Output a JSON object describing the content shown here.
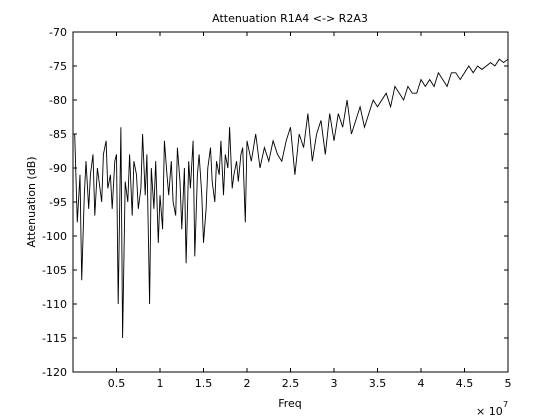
{
  "chart_data": {
    "type": "line",
    "title": "Attenuation R1A4 <-> R2A3",
    "xlabel": "Freq",
    "ylabel": "Attenuation (dB)",
    "x_multiplier": {
      "prefix": "× 10",
      "exponent": "7"
    },
    "xlim": [
      0,
      5
    ],
    "ylim": [
      -120,
      -70
    ],
    "x_ticks": [
      0.5,
      1,
      1.5,
      2,
      2.5,
      3,
      3.5,
      4,
      4.5,
      5
    ],
    "x_tick_labels": [
      "0.5",
      "1",
      "1.5",
      "2",
      "2.5",
      "3",
      "3.5",
      "4",
      "4.5",
      "5"
    ],
    "y_ticks": [
      -120,
      -115,
      -110,
      -105,
      -100,
      -95,
      -90,
      -85,
      -80,
      -75,
      -70
    ],
    "y_tick_labels": [
      "-120",
      "-115",
      "-110",
      "-105",
      "-100",
      "-95",
      "-90",
      "-85",
      "-80",
      "-75",
      "-70"
    ],
    "grid": false,
    "line_color": "#000000",
    "series": [
      {
        "x": [
          0.02,
          0.05,
          0.08,
          0.1,
          0.13,
          0.15,
          0.18,
          0.2,
          0.23,
          0.25,
          0.28,
          0.3,
          0.33,
          0.35,
          0.38,
          0.4,
          0.43,
          0.45,
          0.48,
          0.5,
          0.52,
          0.55,
          0.57,
          0.6,
          0.63,
          0.65,
          0.68,
          0.7,
          0.73,
          0.75,
          0.78,
          0.8,
          0.83,
          0.85,
          0.88,
          0.9,
          0.93,
          0.95,
          0.98,
          1.0,
          1.03,
          1.05,
          1.08,
          1.1,
          1.13,
          1.15,
          1.18,
          1.2,
          1.23,
          1.25,
          1.28,
          1.3,
          1.33,
          1.35,
          1.38,
          1.4,
          1.43,
          1.45,
          1.48,
          1.5,
          1.53,
          1.55,
          1.58,
          1.6,
          1.63,
          1.65,
          1.68,
          1.7,
          1.73,
          1.75,
          1.78,
          1.8,
          1.83,
          1.85,
          1.88,
          1.9,
          1.93,
          1.95,
          1.98,
          2.0,
          2.05,
          2.1,
          2.15,
          2.2,
          2.25,
          2.3,
          2.35,
          2.4,
          2.45,
          2.5,
          2.55,
          2.6,
          2.65,
          2.7,
          2.75,
          2.8,
          2.85,
          2.9,
          2.95,
          3.0,
          3.05,
          3.1,
          3.15,
          3.2,
          3.25,
          3.3,
          3.35,
          3.4,
          3.45,
          3.5,
          3.55,
          3.6,
          3.65,
          3.7,
          3.75,
          3.8,
          3.85,
          3.9,
          3.95,
          4.0,
          4.05,
          4.1,
          4.15,
          4.2,
          4.25,
          4.3,
          4.35,
          4.4,
          4.45,
          4.5,
          4.55,
          4.6,
          4.65,
          4.7,
          4.75,
          4.8,
          4.85,
          4.9,
          4.95,
          5.0
        ],
        "y": [
          -85,
          -98,
          -91,
          -106.5,
          -94,
          -89,
          -96,
          -91,
          -88,
          -97,
          -90,
          -92,
          -95,
          -88,
          -86,
          -93,
          -91,
          -96,
          -89,
          -88,
          -110,
          -84,
          -115,
          -92,
          -95,
          -88,
          -97,
          -89,
          -91,
          -96,
          -93,
          -85,
          -94,
          -88,
          -110,
          -90,
          -96,
          -89,
          -101,
          -94,
          -99,
          -86,
          -91,
          -94,
          -89,
          -95,
          -97,
          -87,
          -92,
          -99,
          -90,
          -104,
          -89,
          -93,
          -86,
          -103,
          -91,
          -88,
          -94,
          -101,
          -96,
          -90,
          -87,
          -92,
          -95,
          -89,
          -91,
          -86,
          -94,
          -88,
          -90,
          -84,
          -93,
          -91,
          -89,
          -92,
          -88,
          -87,
          -98,
          -86,
          -89,
          -85,
          -90,
          -87,
          -89,
          -86,
          -88,
          -89,
          -86,
          -84,
          -91,
          -85,
          -87,
          -82,
          -89,
          -85,
          -83,
          -88,
          -82,
          -86,
          -82,
          -84,
          -80,
          -85,
          -83,
          -81,
          -84,
          -82,
          -80,
          -81,
          -80,
          -79,
          -81,
          -78,
          -79,
          -80,
          -78,
          -79,
          -79,
          -77,
          -78,
          -77,
          -78,
          -76,
          -77,
          -78,
          -76,
          -76,
          -77,
          -76,
          -75,
          -76,
          -75,
          -75.5,
          -75,
          -74.5,
          -75,
          -74,
          -74.5,
          -74
        ]
      }
    ]
  }
}
